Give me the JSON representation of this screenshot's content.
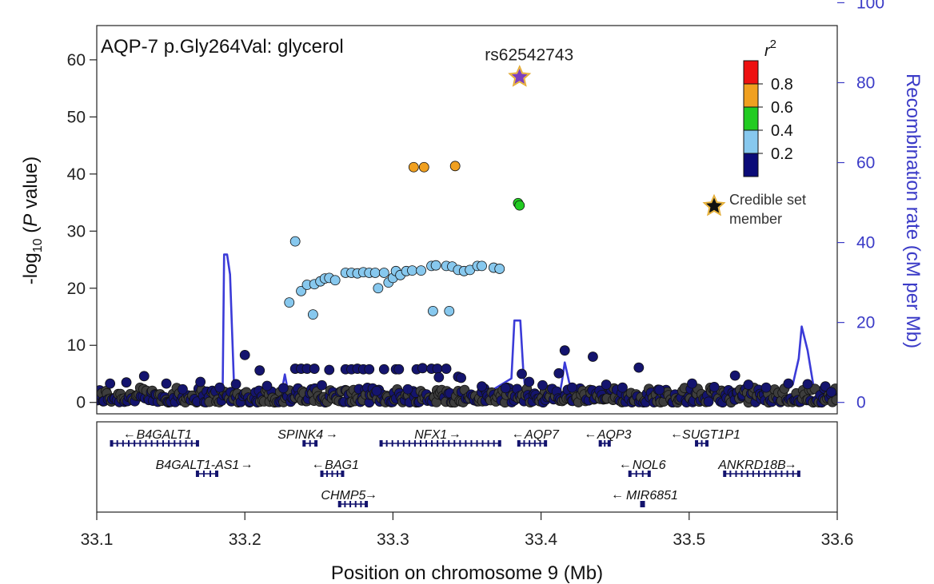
{
  "chart_data": {
    "type": "scatter",
    "title": "AQP-7 p.Gly264Val: glycerol",
    "xlabel": "Position on chromosome 9 (Mb)",
    "ylabel": "-log10(P value)",
    "ylabel_parts": {
      "pre": "-log",
      "sub": "10",
      "open": " (",
      "italic": "P",
      "post": " value)"
    },
    "y2label": "Recombination rate (cM per Mb)",
    "xlim": [
      33.1,
      33.6
    ],
    "ylim": [
      -2,
      66
    ],
    "y2lim": [
      -2.857,
      94.286
    ],
    "xticks": [
      "33.1",
      "33.2",
      "33.3",
      "33.4",
      "33.5",
      "33.6"
    ],
    "yticks": [
      "0",
      "10",
      "20",
      "30",
      "40",
      "50",
      "60"
    ],
    "y2ticks": [
      "0",
      "20",
      "40",
      "60",
      "80",
      "100"
    ],
    "lead_snp": {
      "label": "rs62542743",
      "x": 33.3855,
      "y": 57.0
    },
    "legend": {
      "title_base": "r",
      "title_sup": "2",
      "labels": [
        "0.8",
        "0.6",
        "0.4",
        "0.2"
      ],
      "colors": [
        "#0b0b78",
        "#87c8ee",
        "#22cc22",
        "#f0a020",
        "#ee1111"
      ],
      "credible_label_line1": "Credible set",
      "credible_label_line2": "member",
      "position": "top-right"
    },
    "point_colors": {
      "grey": "#3d3d3d",
      "navy": "#14146e",
      "light": "#87c8ee",
      "green": "#22cc22",
      "orange": "#f0a020",
      "purple": "#7b3fbf",
      "edge": "#111111"
    },
    "series": [
      {
        "name": "0.4-0.6",
        "color": "orange",
        "points": [
          [
            33.314,
            41.2
          ],
          [
            33.321,
            41.2
          ],
          [
            33.342,
            41.4
          ]
        ]
      },
      {
        "name": "0.4-0.6",
        "color": "green",
        "points": [
          [
            33.3845,
            34.9
          ],
          [
            33.3855,
            34.5
          ]
        ]
      },
      {
        "name": "0.2-0.4",
        "color": "light",
        "points": [
          [
            33.234,
            28.2
          ],
          [
            33.23,
            17.5
          ],
          [
            33.246,
            15.4
          ],
          [
            33.327,
            16.0
          ],
          [
            33.338,
            16.0
          ],
          [
            33.238,
            19.5
          ],
          [
            33.242,
            20.6
          ],
          [
            33.247,
            20.7
          ],
          [
            33.251,
            21.2
          ],
          [
            33.254,
            21.7
          ],
          [
            33.257,
            21.8
          ],
          [
            33.261,
            21.4
          ],
          [
            33.268,
            22.7
          ],
          [
            33.272,
            22.7
          ],
          [
            33.276,
            22.6
          ],
          [
            33.28,
            22.8
          ],
          [
            33.284,
            22.7
          ],
          [
            33.288,
            22.7
          ],
          [
            33.294,
            22.7
          ],
          [
            33.29,
            20.0
          ],
          [
            33.297,
            21.0
          ],
          [
            33.3,
            21.8
          ],
          [
            33.302,
            23.0
          ],
          [
            33.305,
            22.3
          ],
          [
            33.309,
            23.0
          ],
          [
            33.313,
            23.1
          ],
          [
            33.319,
            23.1
          ],
          [
            33.326,
            23.9
          ],
          [
            33.329,
            24.0
          ],
          [
            33.336,
            23.9
          ],
          [
            33.34,
            23.8
          ],
          [
            33.344,
            23.2
          ],
          [
            33.348,
            23.0
          ],
          [
            33.352,
            23.2
          ],
          [
            33.357,
            23.9
          ],
          [
            33.36,
            23.9
          ],
          [
            33.368,
            23.6
          ],
          [
            33.372,
            23.4
          ]
        ]
      },
      {
        "name": "0-0.2",
        "color": "navy",
        "points": [
          [
            33.2,
            8.3
          ],
          [
            33.21,
            5.6
          ],
          [
            33.234,
            5.9
          ],
          [
            33.238,
            5.9
          ],
          [
            33.242,
            5.9
          ],
          [
            33.247,
            5.9
          ],
          [
            33.257,
            5.7
          ],
          [
            33.268,
            5.8
          ],
          [
            33.272,
            5.8
          ],
          [
            33.276,
            5.9
          ],
          [
            33.28,
            5.8
          ],
          [
            33.284,
            5.8
          ],
          [
            33.294,
            5.8
          ],
          [
            33.302,
            5.8
          ],
          [
            33.304,
            5.8
          ],
          [
            33.316,
            5.8
          ],
          [
            33.32,
            6.0
          ],
          [
            33.326,
            5.9
          ],
          [
            33.33,
            5.9
          ],
          [
            33.331,
            4.4
          ],
          [
            33.336,
            5.9
          ],
          [
            33.344,
            4.5
          ],
          [
            33.346,
            4.3
          ],
          [
            33.387,
            5.0
          ],
          [
            33.392,
            3.6
          ],
          [
            33.412,
            5.1
          ],
          [
            33.416,
            9.1
          ],
          [
            33.435,
            8.0
          ],
          [
            33.466,
            6.1
          ],
          [
            33.502,
            3.3
          ],
          [
            33.531,
            4.7
          ],
          [
            33.132,
            4.6
          ],
          [
            33.17,
            3.6
          ],
          [
            33.194,
            3.2
          ],
          [
            33.12,
            3.5
          ],
          [
            33.109,
            3.3
          ],
          [
            33.147,
            3.3
          ],
          [
            33.158,
            2.3
          ],
          [
            33.183,
            2.6
          ],
          [
            33.215,
            2.9
          ],
          [
            33.226,
            2.5
          ],
          [
            33.252,
            3.0
          ],
          [
            33.289,
            2.0
          ],
          [
            33.31,
            2.3
          ],
          [
            33.36,
            2.8
          ],
          [
            33.376,
            2.5
          ],
          [
            33.401,
            3.0
          ],
          [
            33.421,
            2.6
          ],
          [
            33.444,
            3.1
          ],
          [
            33.455,
            2.6
          ],
          [
            33.48,
            2.2
          ],
          [
            33.517,
            2.7
          ],
          [
            33.54,
            3.1
          ],
          [
            33.552,
            2.6
          ],
          [
            33.567,
            3.3
          ],
          [
            33.58,
            3.2
          ],
          [
            33.592,
            2.8
          ],
          [
            33.596,
            1.8
          ]
        ]
      }
    ],
    "baseline_background": {
      "color_a": "grey",
      "color_b": "navy",
      "x_range": [
        33.1,
        33.6
      ],
      "y_range": [
        0.0,
        2.6
      ]
    },
    "recombination": {
      "color": "#3b3bd8",
      "x": [
        33.1,
        33.17,
        33.185,
        33.186,
        33.188,
        33.19,
        33.193,
        33.224,
        33.227,
        33.23,
        33.24,
        33.36,
        33.38,
        33.382,
        33.384,
        33.386,
        33.388,
        33.39,
        33.412,
        33.414,
        33.416,
        33.419,
        33.425,
        33.56,
        33.57,
        33.574,
        33.576,
        33.58,
        33.584,
        33.6
      ],
      "y": [
        0.5,
        1.0,
        2.5,
        37.0,
        37.0,
        32.0,
        1.0,
        1.0,
        7.0,
        1.0,
        0.5,
        1.5,
        6.0,
        20.5,
        20.5,
        20.5,
        8.0,
        1.0,
        1.0,
        5.0,
        10.0,
        5.0,
        1.0,
        1.0,
        4.5,
        11.0,
        19.0,
        13.0,
        4.0,
        3.0
      ]
    },
    "genes": {
      "color": "#14146e",
      "items": [
        {
          "name": "B4GALT1",
          "arrow": "left",
          "row": 0,
          "x0": 33.11,
          "x1": 33.168
        },
        {
          "name": "SPINK4",
          "arrow": "right",
          "row": 0,
          "x0": 33.24,
          "x1": 33.248
        },
        {
          "name": "NFX1",
          "arrow": "right",
          "row": 0,
          "x0": 33.292,
          "x1": 33.372
        },
        {
          "name": "AQP7",
          "arrow": "left",
          "row": 0,
          "x0": 33.385,
          "x1": 33.403
        },
        {
          "name": "AQP3",
          "arrow": "left",
          "row": 0,
          "x0": 33.44,
          "x1": 33.446
        },
        {
          "name": "SUGT1P1",
          "arrow": "left",
          "row": 0,
          "x0": 33.505,
          "x1": 33.512
        },
        {
          "name": "B4GALT1-AS1",
          "arrow": "right",
          "row": 1,
          "x0": 33.168,
          "x1": 33.181
        },
        {
          "name": "BAG1",
          "arrow": "left",
          "row": 1,
          "x0": 33.252,
          "x1": 33.266
        },
        {
          "name": "NOL6",
          "arrow": "left",
          "row": 1,
          "x0": 33.46,
          "x1": 33.473
        },
        {
          "name": "ANKRD18B",
          "arrow": "right",
          "row": 1,
          "x0": 33.524,
          "x1": 33.574
        },
        {
          "name": "CHMP5",
          "arrow": "right",
          "row": 2,
          "x0": 33.264,
          "x1": 33.282
        },
        {
          "name": "MIR6851",
          "arrow": "left",
          "row": 2,
          "x0": 33.468,
          "x1": 33.469
        }
      ]
    }
  }
}
